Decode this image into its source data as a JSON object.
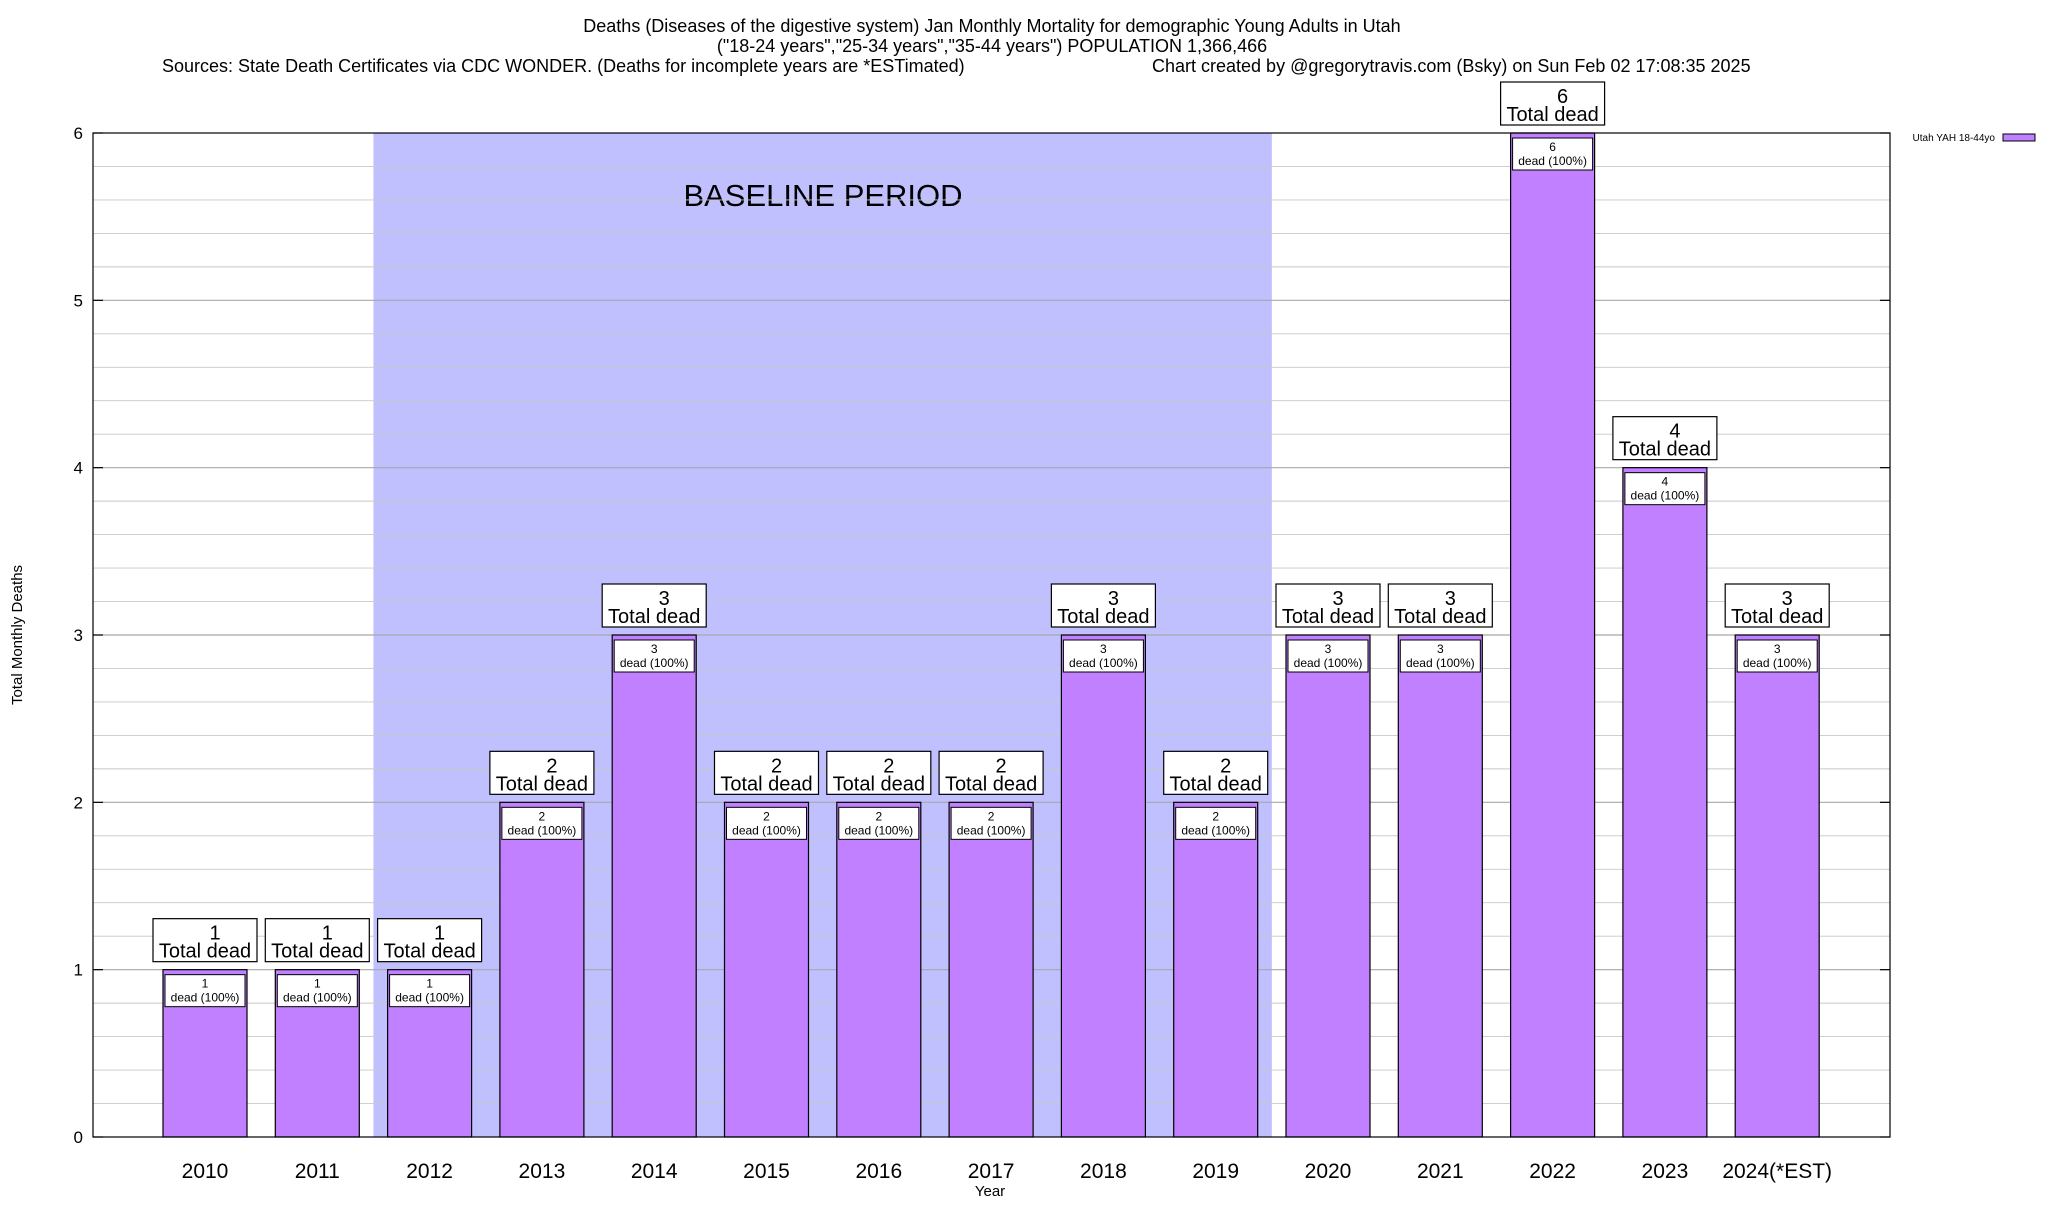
{
  "chart_data": {
    "type": "bar",
    "title_lines": [
      "Deaths (Diseases of the digestive system) Jan Monthly Mortality for demographic Young Adults in Utah",
      "(\"18-24 years\",\"25-34 years\",\"35-44 years\") POPULATION 1,366,466"
    ],
    "sources_text": "Sources: State Death Certificates via CDC WONDER. (Deaths for incomplete years are *ESTimated)",
    "credit_text": "Chart created by @gregorytravis.com (Bsky) on Sun Feb 02 17:08:35 2025",
    "xlabel": "Year",
    "ylabel": "Total Monthly Deaths",
    "ylim": [
      0,
      6
    ],
    "yticks": [
      "0",
      "1",
      "2",
      "3",
      "4",
      "5",
      "6"
    ],
    "categories": [
      "2010",
      "2011",
      "2012",
      "2013",
      "2014",
      "2015",
      "2016",
      "2017",
      "2018",
      "2019",
      "2020",
      "2021",
      "2022",
      "2023",
      "2024(*EST)"
    ],
    "series": [
      {
        "name": "Utah YAH 18-44yo",
        "color": "#c080ff",
        "values": [
          1,
          1,
          1,
          2,
          3,
          2,
          2,
          2,
          3,
          2,
          3,
          3,
          6,
          4,
          3
        ]
      }
    ],
    "top_labels": {
      "values": [
        "1",
        "1",
        "1",
        "2",
        "3",
        "2",
        "2",
        "2",
        "3",
        "2",
        "3",
        "3",
        "6",
        "4",
        "3"
      ],
      "caption": "Total dead"
    },
    "inner_labels": {
      "values": [
        "1",
        "1",
        "1",
        "2",
        "3",
        "2",
        "2",
        "2",
        "3",
        "2",
        "3",
        "3",
        "6",
        "4",
        "3"
      ],
      "caption": "dead (100%)"
    },
    "baseline": {
      "label": "BASELINE PERIOD",
      "from_category": "2012",
      "to_category": "2019",
      "color": "#c0c0ff"
    },
    "grid": true,
    "legend_position": "top-right",
    "bar_edge_color": "#000000"
  }
}
